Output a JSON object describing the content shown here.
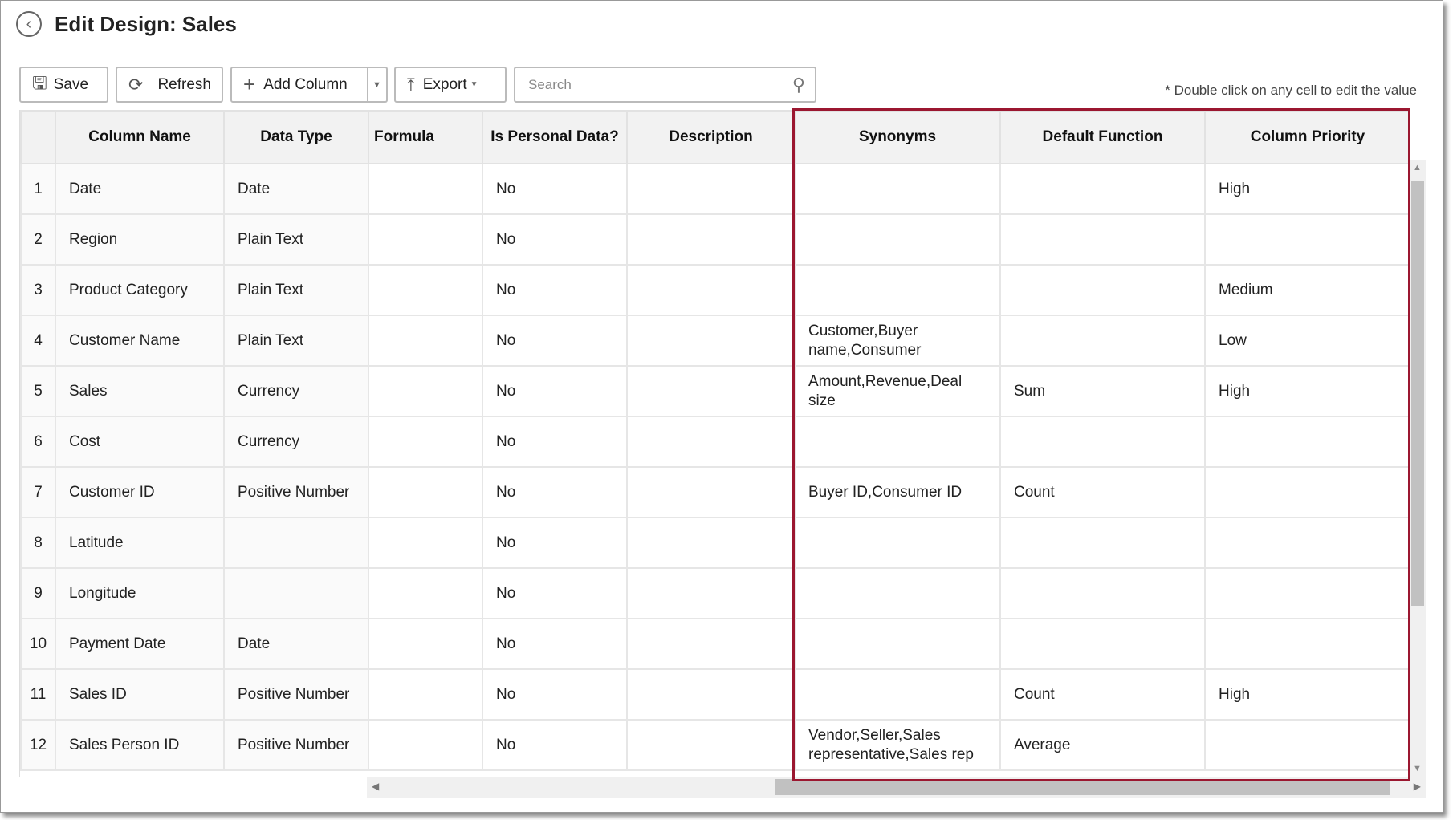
{
  "header": {
    "title": "Edit Design: Sales"
  },
  "toolbar": {
    "save_label": "Save",
    "refresh_label": "Refresh",
    "add_column_label": "Add Column",
    "export_label": "Export",
    "search_placeholder": "Search",
    "note": "* Double click on any cell to edit the value"
  },
  "table": {
    "columns": [
      "",
      "Column Name",
      "Data Type",
      "Formula",
      "Is Personal Data?",
      "Description",
      "Synonyms",
      "Default Function",
      "Column Priority"
    ],
    "rows": [
      [
        "1",
        "Date",
        "Date",
        "",
        "No",
        "",
        "",
        "",
        "High"
      ],
      [
        "2",
        "Region",
        "Plain Text",
        "",
        "No",
        "",
        "",
        "",
        ""
      ],
      [
        "3",
        "Product Category",
        "Plain Text",
        "",
        "No",
        "",
        "",
        "",
        "Medium"
      ],
      [
        "4",
        "Customer Name",
        "Plain Text",
        "",
        "No",
        "",
        "Customer,Buyer name,Consumer",
        "",
        "Low"
      ],
      [
        "5",
        "Sales",
        "Currency",
        "",
        "No",
        "",
        "Amount,Revenue,Deal size",
        "Sum",
        "High"
      ],
      [
        "6",
        "Cost",
        "Currency",
        "",
        "No",
        "",
        "",
        "",
        ""
      ],
      [
        "7",
        "Customer ID",
        "Positive Number",
        "",
        "No",
        "",
        "Buyer ID,Consumer ID",
        "Count",
        ""
      ],
      [
        "8",
        "Latitude",
        "",
        "",
        "No",
        "",
        "",
        "",
        ""
      ],
      [
        "9",
        "Longitude",
        "",
        "",
        "No",
        "",
        "",
        "",
        ""
      ],
      [
        "10",
        "Payment Date",
        "Date",
        "",
        "No",
        "",
        "",
        "",
        ""
      ],
      [
        "11",
        "Sales ID",
        "Positive Number",
        "",
        "No",
        "",
        "",
        "Count",
        "High"
      ],
      [
        "12",
        "Sales Person ID",
        "Positive Number",
        "",
        "No",
        "",
        "Vendor,Seller,Sales representative,Sales rep",
        "Average",
        ""
      ]
    ]
  },
  "colors": {
    "highlight": "#9b1730",
    "header_bg": "#f2f2f2"
  }
}
